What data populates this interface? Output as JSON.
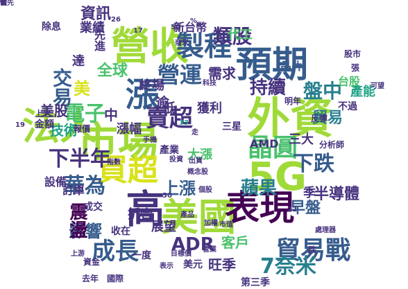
{
  "palette": [
    "#440154",
    "#46327e",
    "#365c8d",
    "#277f8e",
    "#1fa187",
    "#4ac16d",
    "#a0da39",
    "#fde725"
  ],
  "words": [
    {
      "text": "外資",
      "color": "#a0da39"
    },
    {
      "text": "市場",
      "color": "#a0da39"
    },
    {
      "text": "營收",
      "color": "#a0da39"
    },
    {
      "text": "法人",
      "color": "#a0da39"
    },
    {
      "text": "5G",
      "color": "#a0da39"
    },
    {
      "text": "美國",
      "color": "#a0da39"
    },
    {
      "text": "預期",
      "color": "#365c8d"
    },
    {
      "text": "表現",
      "color": "#440154"
    },
    {
      "text": "漲",
      "color": "#365c8d"
    },
    {
      "text": "買超",
      "color": "#d8e219"
    },
    {
      "text": "高",
      "color": "#46327e"
    },
    {
      "text": "製程",
      "color": "#365c8d"
    },
    {
      "text": "晶圓",
      "color": "#4ac16d"
    },
    {
      "text": "貿易戰",
      "color": "#365c8d"
    },
    {
      "text": "賣超",
      "color": "#46327e"
    },
    {
      "text": "下半年",
      "color": "#46327e"
    },
    {
      "text": "營運",
      "color": "#365c8d"
    },
    {
      "text": "電子",
      "color": "#4ac16d"
    },
    {
      "text": "成長",
      "color": "#365c8d"
    },
    {
      "text": "7奈米",
      "color": "#277f8e"
    },
    {
      "text": "下跌",
      "color": "#365c8d"
    },
    {
      "text": "華為",
      "color": "#365c8d"
    },
    {
      "text": "ADR",
      "color": "#46327e"
    },
    {
      "text": "蘋果",
      "color": "#277f8e"
    },
    {
      "text": "盤中",
      "color": "#277f8e"
    },
    {
      "text": "上漲",
      "color": "#365c8d"
    },
    {
      "text": "交易",
      "color": "#365c8d"
    },
    {
      "text": "類股",
      "color": "#46327e"
    },
    {
      "text": "持續",
      "color": "#46327e"
    },
    {
      "text": "半導體",
      "color": "#46327e"
    },
    {
      "text": "影響",
      "color": "#365c8d"
    },
    {
      "text": "震盪",
      "color": "#440154"
    },
    {
      "text": "全球",
      "color": "#4ac16d"
    },
    {
      "text": "需求",
      "color": "#46327e"
    },
    {
      "text": "美股",
      "color": "#46327e"
    },
    {
      "text": "技術",
      "color": "#1fa187"
    },
    {
      "text": "漲幅",
      "color": "#46327e"
    },
    {
      "text": "資訊",
      "color": "#46327e"
    },
    {
      "text": "三大",
      "color": "#46327e"
    },
    {
      "text": "客戶",
      "color": "#4ac16d"
    },
    {
      "text": "旺季",
      "color": "#46327e"
    },
    {
      "text": "貿易",
      "color": "#277f8e"
    },
    {
      "text": "早盤",
      "color": "#365c8d"
    },
    {
      "text": "產能",
      "color": "#1fa187"
    },
    {
      "text": "獲利",
      "color": "#46327e"
    },
    {
      "text": "終場",
      "color": "#46327e"
    },
    {
      "text": "大漲",
      "color": "#4ac16d"
    },
    {
      "text": "業績",
      "color": "#46327e"
    },
    {
      "text": "代工",
      "color": "#4ac16d"
    },
    {
      "text": "新台幣",
      "color": "#46327e"
    },
    {
      "text": "折合",
      "color": "#46327e"
    },
    {
      "text": "第三季",
      "color": "#46327e"
    },
    {
      "text": "三星",
      "color": "#46327e"
    },
    {
      "text": "展望",
      "color": "#46327e"
    },
    {
      "text": "訂單",
      "color": "#46327e"
    },
    {
      "text": "設備",
      "color": "#46327e"
    },
    {
      "text": "晶片",
      "color": "#365c8d"
    },
    {
      "text": "季",
      "color": "#46327e"
    },
    {
      "text": "台股",
      "color": "#4ac16d"
    },
    {
      "text": "不過",
      "color": "#46327e"
    },
    {
      "text": "逾",
      "color": "#46327e"
    },
    {
      "text": "美",
      "color": "#d8e219"
    },
    {
      "text": "中",
      "color": "#46327e"
    },
    {
      "text": "低",
      "color": "#46327e"
    },
    {
      "text": "達",
      "color": "#46327e"
    },
    {
      "text": "產業",
      "color": "#46327e"
    },
    {
      "text": "分析師",
      "color": "#46327e"
    },
    {
      "text": "美元",
      "color": "#46327e"
    },
    {
      "text": "明年",
      "color": "#46327e"
    },
    {
      "text": "反彈",
      "color": "#46327e"
    },
    {
      "text": "股市",
      "color": "#46327e"
    },
    {
      "text": "國際",
      "color": "#46327e"
    },
    {
      "text": "去年",
      "color": "#46327e"
    },
    {
      "text": "成交",
      "color": "#46327e"
    },
    {
      "text": "收在",
      "color": "#46327e"
    },
    {
      "text": "一度",
      "color": "#46327e"
    },
    {
      "text": "金額",
      "color": "#46327e"
    },
    {
      "text": "除息",
      "color": "#46327e"
    },
    {
      "text": "先進",
      "color": "#46327e"
    },
    {
      "text": "張",
      "color": "#46327e"
    },
    {
      "text": "跌",
      "color": "#46327e"
    },
    {
      "text": "走",
      "color": "#46327e"
    },
    {
      "text": "AMD",
      "color": "#46327e"
    },
    {
      "text": "19",
      "color": "#46327e"
    },
    {
      "text": "26",
      "color": "#46327e"
    },
    {
      "text": "17",
      "color": "#46327e"
    },
    {
      "text": "33",
      "color": "#1fa187"
    },
    {
      "text": "30",
      "color": "#46327e"
    },
    {
      "text": "22",
      "color": "#46327e"
    },
    {
      "text": "50",
      "color": "#46327e"
    },
    {
      "text": "%",
      "color": "#46327e"
    },
    {
      "text": "產品",
      "color": "#46327e"
    },
    {
      "text": "指數",
      "color": "#46327e"
    },
    {
      "text": "出貨",
      "color": "#46327e"
    },
    {
      "text": "個股",
      "color": "#46327e"
    },
    {
      "text": "目標價",
      "color": "#46327e"
    },
    {
      "text": "概念股",
      "color": "#46327e"
    },
    {
      "text": "處理器",
      "color": "#46327e"
    },
    {
      "text": "市值",
      "color": "#46327e"
    },
    {
      "text": "表示",
      "color": "#46327e"
    },
    {
      "text": "投資",
      "color": "#46327e"
    },
    {
      "text": "上游",
      "color": "#46327e"
    },
    {
      "text": "加權",
      "color": "#46327e"
    },
    {
      "text": "手機",
      "color": "#46327e"
    },
    {
      "text": "科技",
      "color": "#46327e"
    },
    {
      "text": "營業",
      "color": "#46327e"
    },
    {
      "text": "可望",
      "color": "#46327e"
    },
    {
      "text": "奈米",
      "color": "#46327e"
    },
    {
      "text": "上之",
      "color": "#46327e"
    },
    {
      "text": "資金",
      "color": "#46327e"
    },
    {
      "text": "報價",
      "color": "#46327e"
    },
    {
      "text": "領先",
      "color": "#46327e"
    },
    {
      "text": "估",
      "color": "#46327e"
    },
    {
      "text": "台",
      "color": "#46327e"
    },
    {
      "text": "前",
      "color": "#46327e"
    }
  ]
}
